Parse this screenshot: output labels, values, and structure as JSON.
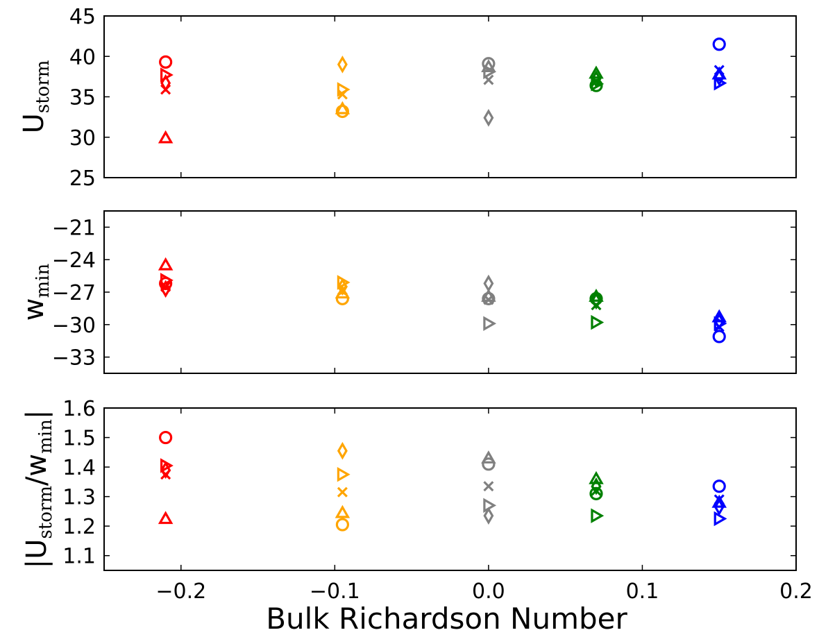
{
  "chart_data": [
    {
      "type": "scatter",
      "xlabel": "",
      "ylabel": "U",
      "ylabel_sub": "storm",
      "xlim": [
        -0.25,
        0.2
      ],
      "ylim": [
        25,
        45
      ],
      "yticks": [
        "25",
        "30",
        "35",
        "40",
        "45"
      ],
      "xticks": [],
      "grid": false,
      "points": [
        {
          "x": -0.21,
          "y": 39.3,
          "marker": "circle",
          "color": "#ff0000"
        },
        {
          "x": -0.21,
          "y": 37.7,
          "marker": "triangle-right",
          "color": "#ff0000"
        },
        {
          "x": -0.21,
          "y": 36.7,
          "marker": "diamond",
          "color": "#ff0000"
        },
        {
          "x": -0.21,
          "y": 35.9,
          "marker": "x",
          "color": "#ff0000"
        },
        {
          "x": -0.21,
          "y": 29.9,
          "marker": "triangle-up",
          "color": "#ff0000"
        },
        {
          "x": -0.095,
          "y": 39.0,
          "marker": "diamond",
          "color": "#ffa500"
        },
        {
          "x": -0.095,
          "y": 35.9,
          "marker": "triangle-right",
          "color": "#ffa500"
        },
        {
          "x": -0.095,
          "y": 35.3,
          "marker": "x",
          "color": "#ffa500"
        },
        {
          "x": -0.095,
          "y": 33.5,
          "marker": "triangle-up",
          "color": "#ffa500"
        },
        {
          "x": -0.095,
          "y": 33.2,
          "marker": "circle",
          "color": "#ffa500"
        },
        {
          "x": 0.0,
          "y": 39.1,
          "marker": "circle",
          "color": "#808080"
        },
        {
          "x": 0.0,
          "y": 38.7,
          "marker": "triangle-up",
          "color": "#808080"
        },
        {
          "x": 0.0,
          "y": 38.1,
          "marker": "triangle-right",
          "color": "#808080"
        },
        {
          "x": 0.0,
          "y": 37.1,
          "marker": "x",
          "color": "#808080"
        },
        {
          "x": 0.0,
          "y": 32.4,
          "marker": "diamond",
          "color": "#808080"
        },
        {
          "x": 0.07,
          "y": 37.9,
          "marker": "triangle-up",
          "color": "#008000"
        },
        {
          "x": 0.07,
          "y": 37.2,
          "marker": "diamond",
          "color": "#008000"
        },
        {
          "x": 0.07,
          "y": 36.9,
          "marker": "x",
          "color": "#008000"
        },
        {
          "x": 0.07,
          "y": 36.6,
          "marker": "triangle-right",
          "color": "#008000"
        },
        {
          "x": 0.07,
          "y": 36.4,
          "marker": "circle",
          "color": "#008000"
        },
        {
          "x": 0.15,
          "y": 41.5,
          "marker": "circle",
          "color": "#0000ff"
        },
        {
          "x": 0.15,
          "y": 38.3,
          "marker": "x",
          "color": "#0000ff"
        },
        {
          "x": 0.15,
          "y": 37.8,
          "marker": "triangle-up",
          "color": "#0000ff"
        },
        {
          "x": 0.15,
          "y": 37.4,
          "marker": "diamond",
          "color": "#0000ff"
        },
        {
          "x": 0.15,
          "y": 36.7,
          "marker": "triangle-right",
          "color": "#0000ff"
        }
      ]
    },
    {
      "type": "scatter",
      "xlabel": "",
      "ylabel": "w",
      "ylabel_sub": "min",
      "xlim": [
        -0.25,
        0.2
      ],
      "ylim": [
        -34.5,
        -19.5
      ],
      "yticks": [
        "−33",
        "−30",
        "−27",
        "−24",
        "−21"
      ],
      "ytick_values": [
        -33,
        -30,
        -27,
        -24,
        -21
      ],
      "xticks": [],
      "grid": false,
      "points": [
        {
          "x": -0.21,
          "y": -24.5,
          "marker": "triangle-up",
          "color": "#ff0000"
        },
        {
          "x": -0.21,
          "y": -25.9,
          "marker": "triangle-right",
          "color": "#ff0000"
        },
        {
          "x": -0.21,
          "y": -26.2,
          "marker": "circle",
          "color": "#ff0000"
        },
        {
          "x": -0.21,
          "y": -26.5,
          "marker": "x",
          "color": "#ff0000"
        },
        {
          "x": -0.21,
          "y": -26.7,
          "marker": "diamond",
          "color": "#ff0000"
        },
        {
          "x": -0.095,
          "y": -26.1,
          "marker": "triangle-right",
          "color": "#ffa500"
        },
        {
          "x": -0.095,
          "y": -26.5,
          "marker": "diamond",
          "color": "#ffa500"
        },
        {
          "x": -0.095,
          "y": -26.8,
          "marker": "x",
          "color": "#ffa500"
        },
        {
          "x": -0.095,
          "y": -27.1,
          "marker": "triangle-up",
          "color": "#ffa500"
        },
        {
          "x": -0.095,
          "y": -27.6,
          "marker": "circle",
          "color": "#ffa500"
        },
        {
          "x": 0.0,
          "y": -26.2,
          "marker": "diamond",
          "color": "#808080"
        },
        {
          "x": 0.0,
          "y": -27.4,
          "marker": "triangle-up",
          "color": "#808080"
        },
        {
          "x": 0.0,
          "y": -27.6,
          "marker": "circle",
          "color": "#808080"
        },
        {
          "x": 0.0,
          "y": -27.7,
          "marker": "x",
          "color": "#808080"
        },
        {
          "x": 0.0,
          "y": -29.9,
          "marker": "triangle-right",
          "color": "#808080"
        },
        {
          "x": 0.07,
          "y": -27.4,
          "marker": "triangle-up",
          "color": "#008000"
        },
        {
          "x": 0.07,
          "y": -27.6,
          "marker": "circle",
          "color": "#008000"
        },
        {
          "x": 0.07,
          "y": -27.8,
          "marker": "diamond",
          "color": "#008000"
        },
        {
          "x": 0.07,
          "y": -28.2,
          "marker": "x",
          "color": "#008000"
        },
        {
          "x": 0.07,
          "y": -29.8,
          "marker": "triangle-right",
          "color": "#008000"
        },
        {
          "x": 0.15,
          "y": -29.3,
          "marker": "triangle-up",
          "color": "#0000ff"
        },
        {
          "x": 0.15,
          "y": -29.7,
          "marker": "diamond",
          "color": "#0000ff"
        },
        {
          "x": 0.15,
          "y": -29.9,
          "marker": "triangle-right",
          "color": "#0000ff"
        },
        {
          "x": 0.15,
          "y": -30.2,
          "marker": "x",
          "color": "#0000ff"
        },
        {
          "x": 0.15,
          "y": -31.1,
          "marker": "circle",
          "color": "#0000ff"
        }
      ]
    },
    {
      "type": "scatter",
      "xlabel": "Bulk Richardson Number",
      "ylabel": "|U",
      "ylabel_sub": "storm",
      "ylabel_mid": "/w",
      "ylabel_sub2": "min",
      "ylabel_end": "|",
      "xlim": [
        -0.25,
        0.2
      ],
      "ylim": [
        1.05,
        1.6
      ],
      "yticks": [
        "1.1",
        "1.2",
        "1.3",
        "1.4",
        "1.5",
        "1.6"
      ],
      "xticks": [
        "−0.2",
        "−0.1",
        "0.0",
        "0.1",
        "0.2"
      ],
      "xtick_values": [
        -0.2,
        -0.1,
        0.0,
        0.1,
        0.2
      ],
      "grid": false,
      "points": [
        {
          "x": -0.21,
          "y": 1.5,
          "marker": "circle",
          "color": "#ff0000"
        },
        {
          "x": -0.21,
          "y": 1.405,
          "marker": "triangle-right",
          "color": "#ff0000"
        },
        {
          "x": -0.21,
          "y": 1.39,
          "marker": "diamond",
          "color": "#ff0000"
        },
        {
          "x": -0.21,
          "y": 1.375,
          "marker": "x",
          "color": "#ff0000"
        },
        {
          "x": -0.21,
          "y": 1.225,
          "marker": "triangle-up",
          "color": "#ff0000"
        },
        {
          "x": -0.095,
          "y": 1.455,
          "marker": "diamond",
          "color": "#ffa500"
        },
        {
          "x": -0.095,
          "y": 1.375,
          "marker": "triangle-right",
          "color": "#ffa500"
        },
        {
          "x": -0.095,
          "y": 1.315,
          "marker": "x",
          "color": "#ffa500"
        },
        {
          "x": -0.095,
          "y": 1.245,
          "marker": "triangle-up",
          "color": "#ffa500"
        },
        {
          "x": -0.095,
          "y": 1.205,
          "marker": "circle",
          "color": "#ffa500"
        },
        {
          "x": 0.0,
          "y": 1.43,
          "marker": "triangle-up",
          "color": "#808080"
        },
        {
          "x": 0.0,
          "y": 1.41,
          "marker": "circle",
          "color": "#808080"
        },
        {
          "x": 0.0,
          "y": 1.335,
          "marker": "x",
          "color": "#808080"
        },
        {
          "x": 0.0,
          "y": 1.27,
          "marker": "triangle-right",
          "color": "#808080"
        },
        {
          "x": 0.0,
          "y": 1.235,
          "marker": "diamond",
          "color": "#808080"
        },
        {
          "x": 0.07,
          "y": 1.36,
          "marker": "triangle-up",
          "color": "#008000"
        },
        {
          "x": 0.07,
          "y": 1.335,
          "marker": "diamond",
          "color": "#008000"
        },
        {
          "x": 0.07,
          "y": 1.32,
          "marker": "x",
          "color": "#008000"
        },
        {
          "x": 0.07,
          "y": 1.31,
          "marker": "circle",
          "color": "#008000"
        },
        {
          "x": 0.07,
          "y": 1.235,
          "marker": "triangle-right",
          "color": "#008000"
        },
        {
          "x": 0.15,
          "y": 1.335,
          "marker": "circle",
          "color": "#0000ff"
        },
        {
          "x": 0.15,
          "y": 1.29,
          "marker": "x",
          "color": "#0000ff"
        },
        {
          "x": 0.15,
          "y": 1.28,
          "marker": "triangle-up",
          "color": "#0000ff"
        },
        {
          "x": 0.15,
          "y": 1.265,
          "marker": "diamond",
          "color": "#0000ff"
        },
        {
          "x": 0.15,
          "y": 1.225,
          "marker": "triangle-right",
          "color": "#0000ff"
        }
      ]
    }
  ]
}
